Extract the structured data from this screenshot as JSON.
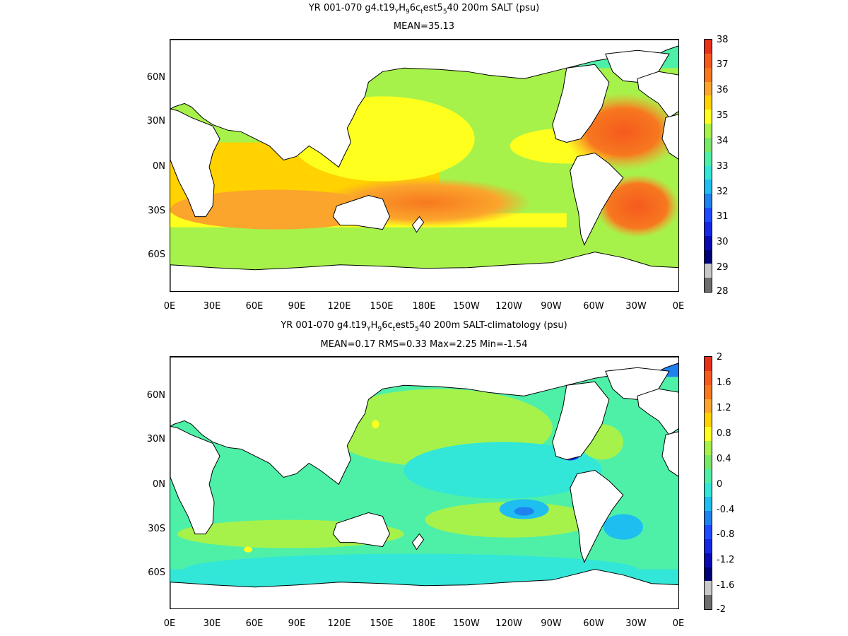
{
  "panels": [
    {
      "title_parts": [
        "YR 001-070 g4.t19",
        "Y",
        "H",
        "9",
        "6c",
        "t",
        "est5",
        "5",
        "40 200m SALT (psu)"
      ],
      "stats": "MEAN=35.13",
      "colorbar_labels": [
        "38",
        "37",
        "36",
        "35",
        "34",
        "33",
        "32",
        "31",
        "30",
        "29",
        "28"
      ],
      "colorbar_colors": [
        "#e8311a",
        "#f55a1e",
        "#f7781f",
        "#fba52c",
        "#ffd200",
        "#ffff1e",
        "#a6f24b",
        "#78e86a",
        "#4ef0a8",
        "#32e6d8",
        "#1ebef0",
        "#1e82f0",
        "#1e4bff",
        "#1428e6",
        "#0a0ab4",
        "#000078",
        "#c8c8c8",
        "#6e6e6e"
      ],
      "ylabels": [
        "60N",
        "30N",
        "0N",
        "30S",
        "60S"
      ]
    },
    {
      "title_parts": [
        "YR 001-070 g4.t19",
        "Y",
        "H",
        "9",
        "6c",
        "t",
        "est5",
        "5",
        "40 200m SALT-climatology (psu)"
      ],
      "stats": "MEAN=0.17   RMS=0.33   Max=2.25   Min=-1.54",
      "colorbar_labels": [
        "2",
        "1.6",
        "1.2",
        "0.8",
        "0.4",
        "0",
        "-0.4",
        "-0.8",
        "-1.2",
        "-1.6",
        "-2"
      ],
      "colorbar_colors": [
        "#e8311a",
        "#f55a1e",
        "#f7781f",
        "#fba52c",
        "#ffd200",
        "#ffff1e",
        "#a6f24b",
        "#78e86a",
        "#4ef0a8",
        "#32e6d8",
        "#1ebef0",
        "#1e82f0",
        "#1e4bff",
        "#1428e6",
        "#0a0ab4",
        "#000078",
        "#c8c8c8",
        "#6e6e6e"
      ],
      "ylabels": [
        "60N",
        "30N",
        "0N",
        "30S",
        "60S"
      ]
    }
  ],
  "xlabels": [
    "0E",
    "30E",
    "60E",
    "90E",
    "120E",
    "150E",
    "180E",
    "150W",
    "120W",
    "90W",
    "60W",
    "30W",
    "0E"
  ]
}
